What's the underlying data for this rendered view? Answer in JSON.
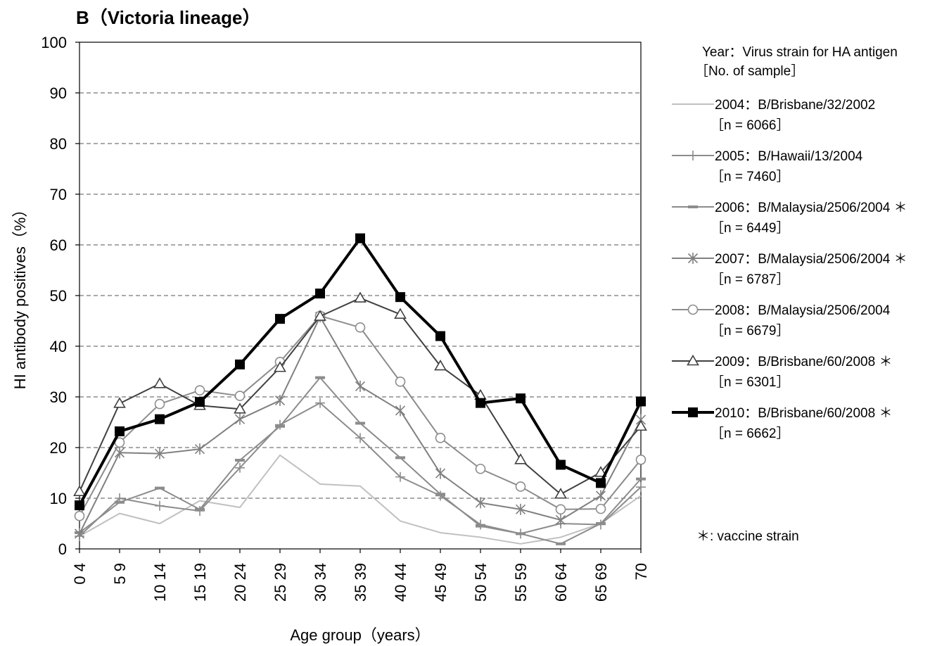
{
  "chart_data": {
    "type": "line",
    "title": "B（Victoria lineage）",
    "xlabel": "Age group（years）",
    "ylabel": "HI antibody positives（%）",
    "ylim": [
      0,
      100
    ],
    "yticks": [
      "0",
      "10",
      "20",
      "30",
      "40",
      "50",
      "60",
      "70",
      "80",
      "90",
      "100"
    ],
    "grid": true,
    "legend_position": "right",
    "categories": [
      "0  4",
      "5  9",
      "10  14",
      "15  19",
      "20  24",
      "25  29",
      "30  34",
      "35  39",
      "40  44",
      "45  49",
      "50  54",
      "55  59",
      "60  64",
      "65  69",
      "70"
    ],
    "legend_header": [
      "Year：Virus strain for HA antigen",
      "［No. of sample］"
    ],
    "footnote": "＊: vaccine strain",
    "series": [
      {
        "name": "2004：B/Brisbane/32/2002",
        "n_label": "［n = 6066］",
        "color": "#c0c0c0",
        "marker": "none",
        "values": [
          2.5,
          7,
          5,
          9.5,
          8.2,
          18.5,
          12.8,
          12.4,
          5.5,
          3.2,
          2.3,
          1,
          2.3,
          5,
          10.5
        ]
      },
      {
        "name": "2005：B/Hawaii/13/2004",
        "n_label": "［n = 7460］",
        "color": "#8c8c8c",
        "marker": "plus",
        "values": [
          2.5,
          10,
          8.5,
          7.5,
          16,
          24.5,
          28.8,
          21.9,
          14.2,
          10.5,
          4.8,
          3,
          5,
          4.8,
          12.2
        ]
      },
      {
        "name": "2006：B/Malaysia/2506/2004 ＊",
        "n_label": "［n = 6449］",
        "color": "#8c8c8c",
        "marker": "dash",
        "values": [
          3.2,
          9.2,
          12,
          7.8,
          17.5,
          24.2,
          33.8,
          24.8,
          18,
          10.8,
          4.5,
          3,
          1,
          5,
          13.8
        ]
      },
      {
        "name": "2007：B/Malaysia/2506/2004 ＊",
        "n_label": "［n = 6787］",
        "color": "#808080",
        "marker": "star",
        "values": [
          3,
          19,
          18.8,
          19.7,
          25.6,
          29.3,
          45.8,
          32.1,
          27.3,
          14.9,
          9.1,
          7.8,
          5.7,
          10.5,
          25.5
        ]
      },
      {
        "name": "2008：B/Malaysia/2506/2004",
        "n_label": "［n = 6679］",
        "color": "#8c8c8c",
        "marker": "circle",
        "values": [
          6.5,
          21,
          28.6,
          31.3,
          30.2,
          36.9,
          46,
          43.7,
          33,
          21.9,
          15.8,
          12.3,
          7.8,
          7.9,
          17.6
        ]
      },
      {
        "name": "2009：B/Brisbane/60/2008 ＊",
        "n_label": "［n = 6301］",
        "color": "#404040",
        "marker": "triangle",
        "values": [
          11.3,
          28.7,
          32.6,
          28.3,
          27.6,
          35.8,
          45.9,
          49.5,
          46.3,
          36.1,
          30.3,
          17.6,
          10.8,
          15.1,
          24.2
        ]
      },
      {
        "name": "2010：B/Brisbane/60/2008 ＊",
        "n_label": "［n = 6662］",
        "color": "#000000",
        "marker": "square",
        "values": [
          8.6,
          23.2,
          25.6,
          29,
          36.4,
          45.4,
          50.4,
          61.3,
          49.7,
          42,
          28.8,
          29.7,
          16.6,
          13,
          29.1
        ]
      }
    ]
  }
}
